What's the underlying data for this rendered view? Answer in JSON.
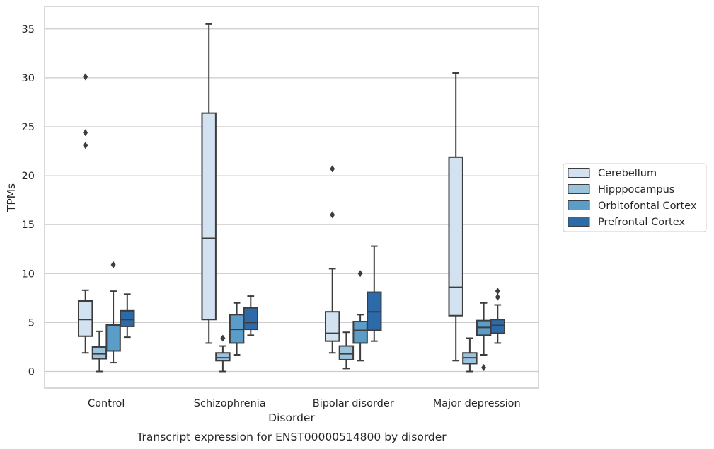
{
  "chart_data": {
    "type": "boxplot",
    "caption": "Transcript expression for ENST00000514800 by disorder",
    "xlabel": "Disorder",
    "ylabel": "TPMs",
    "ylim": [
      -1.7,
      37.3
    ],
    "yticks": [
      0,
      5,
      10,
      15,
      20,
      25,
      30,
      35
    ],
    "grid": "horizontal",
    "legend_position": "right",
    "categories": [
      "Control",
      "Schizophrenia",
      "Bipolar disorder",
      "Major depression"
    ],
    "series": [
      {
        "name": "Cerebellum",
        "color": "#d3e2f0",
        "boxes": [
          {
            "whislo": 1.9,
            "q1": 3.6,
            "med": 5.3,
            "q3": 7.2,
            "whishi": 8.3,
            "fliers": [
              30.1,
              24.4,
              23.1
            ]
          },
          {
            "whislo": 2.9,
            "q1": 5.3,
            "med": 13.6,
            "q3": 26.4,
            "whishi": 35.5,
            "fliers": []
          },
          {
            "whislo": 1.9,
            "q1": 3.1,
            "med": 3.9,
            "q3": 6.1,
            "whishi": 10.5,
            "fliers": [
              20.7,
              16.0
            ]
          },
          {
            "whislo": 1.1,
            "q1": 5.7,
            "med": 8.6,
            "q3": 21.9,
            "whishi": 30.5,
            "fliers": []
          }
        ]
      },
      {
        "name": "Hipppocampus",
        "color": "#9cc3dc",
        "boxes": [
          {
            "whislo": 0.0,
            "q1": 1.3,
            "med": 1.8,
            "q3": 2.5,
            "whishi": 4.1,
            "fliers": []
          },
          {
            "whislo": 0.0,
            "q1": 1.1,
            "med": 1.4,
            "q3": 1.9,
            "whishi": 2.6,
            "fliers": [
              3.4
            ]
          },
          {
            "whislo": 0.3,
            "q1": 1.2,
            "med": 1.8,
            "q3": 2.6,
            "whishi": 4.0,
            "fliers": []
          },
          {
            "whislo": 0.0,
            "q1": 0.8,
            "med": 1.4,
            "q3": 1.9,
            "whishi": 3.4,
            "fliers": []
          }
        ]
      },
      {
        "name": "Orbitofontal Cortex",
        "color": "#5a9dc9",
        "boxes": [
          {
            "whislo": 0.9,
            "q1": 2.1,
            "med": 4.7,
            "q3": 4.8,
            "whishi": 8.2,
            "fliers": [
              10.9
            ]
          },
          {
            "whislo": 1.7,
            "q1": 2.9,
            "med": 4.3,
            "q3": 5.8,
            "whishi": 7.0,
            "fliers": []
          },
          {
            "whislo": 1.1,
            "q1": 2.9,
            "med": 4.2,
            "q3": 5.1,
            "whishi": 5.8,
            "fliers": [
              10.0
            ]
          },
          {
            "whislo": 1.7,
            "q1": 3.7,
            "med": 4.5,
            "q3": 5.2,
            "whishi": 7.0,
            "fliers": [
              0.4
            ]
          }
        ]
      },
      {
        "name": "Prefrontal Cortex",
        "color": "#2c6aa9",
        "boxes": [
          {
            "whislo": 3.5,
            "q1": 4.6,
            "med": 5.3,
            "q3": 6.2,
            "whishi": 7.9,
            "fliers": []
          },
          {
            "whislo": 3.7,
            "q1": 4.3,
            "med": 5.0,
            "q3": 6.5,
            "whishi": 7.7,
            "fliers": []
          },
          {
            "whislo": 3.1,
            "q1": 4.2,
            "med": 6.1,
            "q3": 8.1,
            "whishi": 12.8,
            "fliers": []
          },
          {
            "whislo": 2.9,
            "q1": 3.9,
            "med": 4.7,
            "q3": 5.3,
            "whishi": 6.8,
            "fliers": [
              8.2,
              7.6
            ]
          }
        ]
      }
    ]
  }
}
